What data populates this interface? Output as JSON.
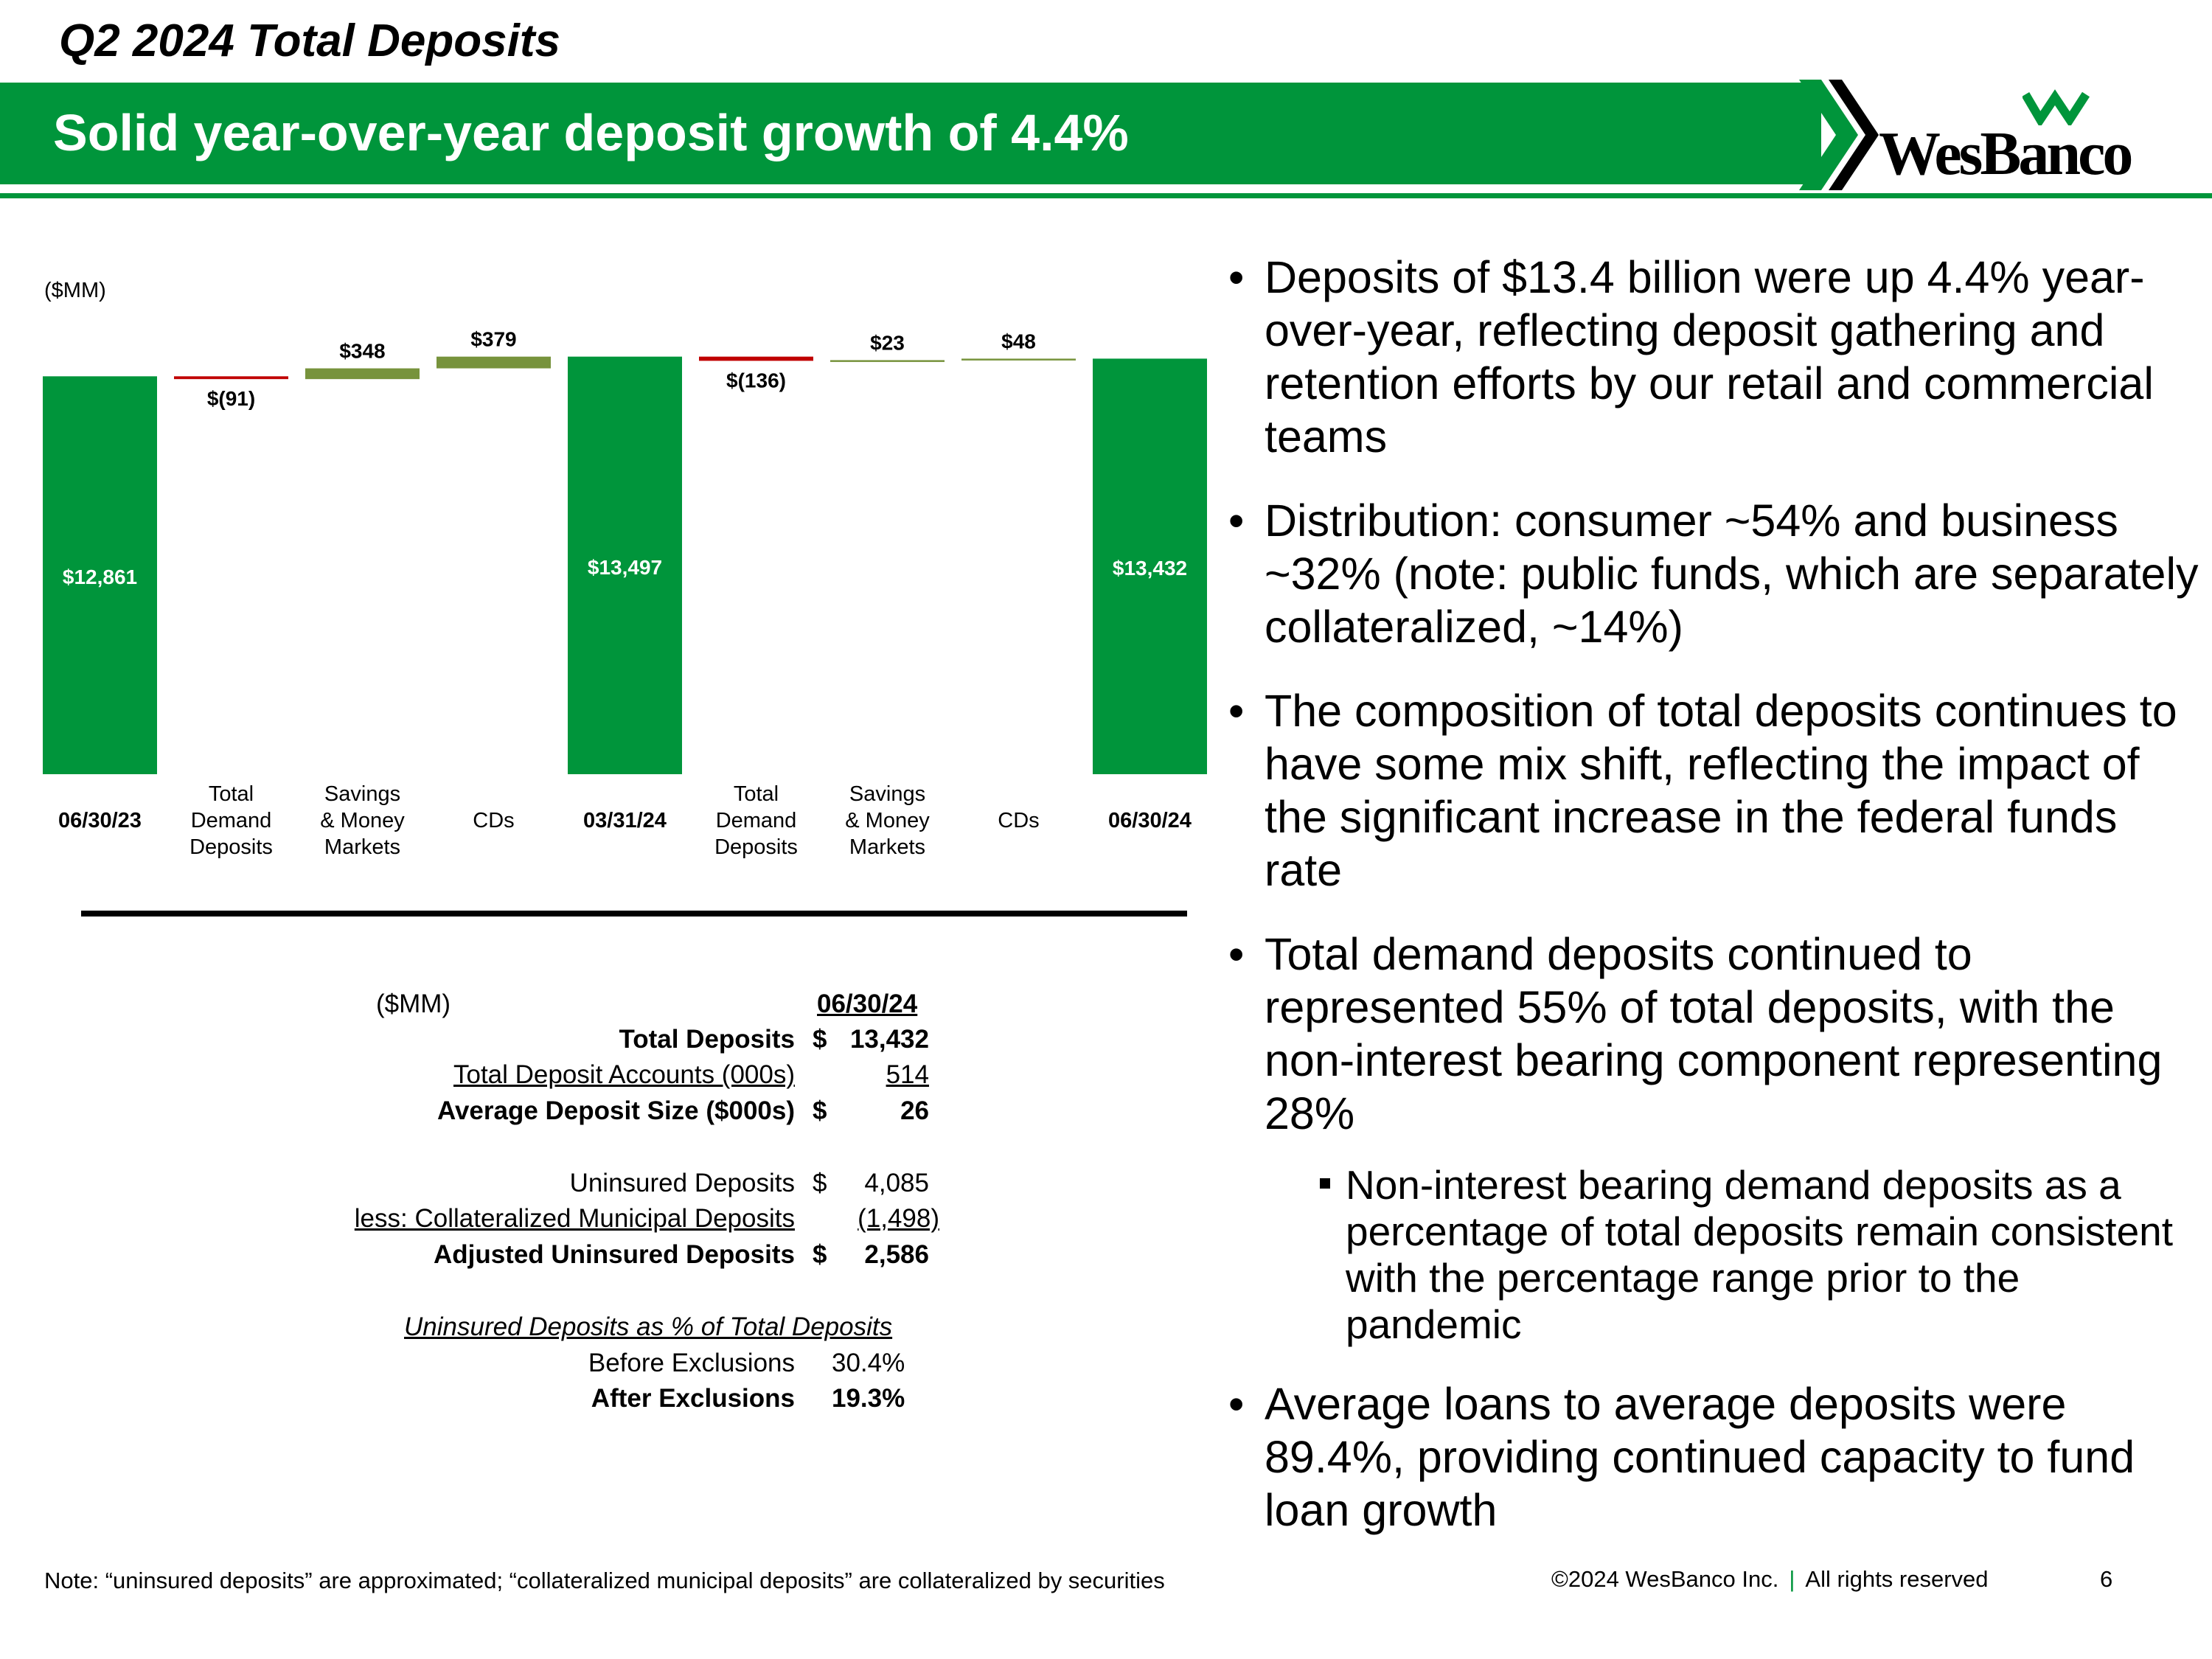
{
  "header": {
    "top_title": "Q2 2024 Total Deposits",
    "banner_title": "Solid year-over-year deposit growth of 4.4%",
    "logo_text": "WesBanco",
    "brand_color": "#00953b"
  },
  "chart_data": {
    "type": "waterfall",
    "unit_label": "($MM)",
    "categories": [
      "06/30/23",
      "Total Demand Deposits",
      "Savings & Money Markets",
      "CDs",
      "03/31/24",
      "Total Demand Deposits",
      "Savings & Money Markets",
      "CDs",
      "06/30/24"
    ],
    "category_lines": [
      [
        "06/30/23"
      ],
      [
        "Total",
        "Demand",
        "Deposits"
      ],
      [
        "Savings",
        "& Money",
        "Markets"
      ],
      [
        "CDs"
      ],
      [
        "03/31/24"
      ],
      [
        "Total",
        "Demand",
        "Deposits"
      ],
      [
        "Savings",
        "& Money",
        "Markets"
      ],
      [
        "CDs"
      ],
      [
        "06/30/24"
      ]
    ],
    "values": [
      12861,
      -91,
      348,
      379,
      13497,
      -136,
      23,
      48,
      13432
    ],
    "kinds": [
      "total",
      "change",
      "change",
      "change",
      "total",
      "change",
      "change",
      "change",
      "total"
    ],
    "labels": [
      "$12,861",
      "$(91)",
      "$348",
      "$379",
      "$13,497",
      "$(136)",
      "$23",
      "$48",
      "$13,432"
    ],
    "ylim": [
      0,
      13600
    ],
    "colors": {
      "total": "#00953b",
      "increase": "#77933c",
      "decrease": "#c00000"
    }
  },
  "table": {
    "unit": "($MM)",
    "date_header": "06/30/24",
    "rows": [
      {
        "label": "Total Deposits",
        "dollar": "$",
        "value": "13,432"
      },
      {
        "label": "Total Deposit Accounts (000s)",
        "dollar": "",
        "value": "514"
      },
      {
        "label": "Average Deposit Size ($000s)",
        "dollar": "$",
        "value": "26"
      },
      {
        "label": "Uninsured Deposits",
        "dollar": "$",
        "value": "4,085"
      },
      {
        "label": "less: Collateralized Municipal Deposits",
        "dollar": "",
        "value": "(1,498)"
      },
      {
        "label": "Adjusted Uninsured Deposits",
        "dollar": "$",
        "value": "2,586"
      }
    ],
    "pct_title": "Uninsured Deposits as % of Total Deposits",
    "pct_rows": [
      {
        "label": "Before Exclusions",
        "value": "30.4%"
      },
      {
        "label": "After Exclusions",
        "value": "19.3%"
      }
    ]
  },
  "bullets": [
    "Deposits of $13.4 billion were up 4.4% year-over-year, reflecting deposit gathering and retention efforts by our retail and commercial teams",
    "Distribution: consumer ~54% and business ~32% (note: public funds, which are separately collateralized, ~14%)",
    "The composition of total deposits continues to have some mix shift, reflecting the impact of the significant increase in the federal funds rate",
    "Total demand deposits continued to represented 55% of total deposits, with the non-interest bearing component representing 28%",
    "Average loans to average deposits were 89.4%, providing continued capacity to fund loan growth"
  ],
  "sub_bullet": "Non-interest bearing demand deposits as a percentage of total deposits remain consistent with the percentage range prior to the pandemic",
  "footer": {
    "note": "Note: “uninsured deposits” are approximated; “collateralized municipal deposits” are collateralized by securities",
    "copyright": "©2024 WesBanco Inc.",
    "separator": "|",
    "rights": "All rights reserved",
    "page": "6"
  }
}
